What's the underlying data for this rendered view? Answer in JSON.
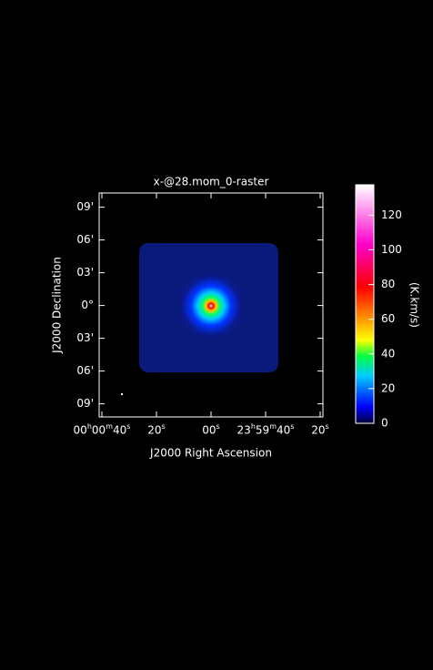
{
  "chart_data": {
    "type": "image",
    "title": "x-@28.mom_0-raster",
    "xlabel": "J2000 Right Ascension",
    "ylabel": "J2000 Declination",
    "xlim": [
      41,
      -41
    ],
    "xticks": [
      {
        "value": 40,
        "label": "00h00m40s"
      },
      {
        "value": 20,
        "label": "20s"
      },
      {
        "value": 0,
        "label": "00s"
      },
      {
        "value": -20,
        "label": "23h59m40s"
      },
      {
        "value": -40,
        "label": "20s"
      }
    ],
    "ylim": [
      -10.2,
      10.3
    ],
    "yticks": [
      {
        "value": 9,
        "label": "09'"
      },
      {
        "value": 6,
        "label": "06'"
      },
      {
        "value": 3,
        "label": "03'"
      },
      {
        "value": 0,
        "label": "0°"
      },
      {
        "value": -3,
        "label": "03'"
      },
      {
        "value": -6,
        "label": "06'"
      },
      {
        "value": -9,
        "label": "09'"
      }
    ],
    "colorbar": {
      "label": "(K.km/s)",
      "lim": [
        0,
        137.5
      ],
      "ticks": [
        0,
        20,
        40,
        60,
        80,
        100,
        120
      ]
    }
  }
}
